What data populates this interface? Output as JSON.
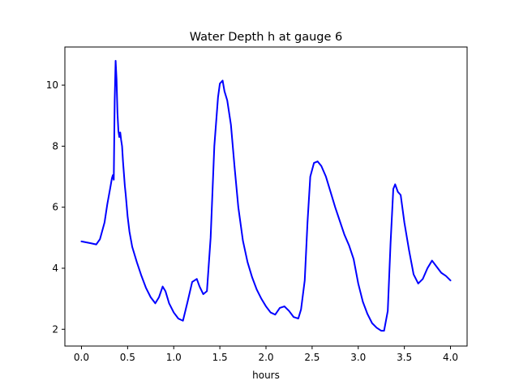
{
  "chart_data": {
    "type": "line",
    "title": "Water Depth h at gauge 6",
    "xlabel": "hours",
    "ylabel": "",
    "xlim": [
      -0.18,
      4.18
    ],
    "ylim": [
      1.45,
      11.25
    ],
    "xticks": [
      0.0,
      0.5,
      1.0,
      1.5,
      2.0,
      2.5,
      3.0,
      3.5,
      4.0
    ],
    "xtick_labels": [
      "0.0",
      "0.5",
      "1.0",
      "1.5",
      "2.0",
      "2.5",
      "3.0",
      "3.5",
      "4.0"
    ],
    "yticks": [
      2,
      4,
      6,
      8,
      10
    ],
    "ytick_labels": [
      "2",
      "4",
      "6",
      "8",
      "10"
    ],
    "grid": false,
    "colors": {
      "line": "#0000ff"
    },
    "series": [
      {
        "x": [
          0.0,
          0.1,
          0.16,
          0.2,
          0.25,
          0.28,
          0.31,
          0.33,
          0.34,
          0.35,
          0.36,
          0.37,
          0.38,
          0.39,
          0.4,
          0.41,
          0.42,
          0.43,
          0.44,
          0.45,
          0.46,
          0.47,
          0.48,
          0.5,
          0.52,
          0.55,
          0.6,
          0.65,
          0.7,
          0.75,
          0.8,
          0.84,
          0.88,
          0.91,
          0.95,
          1.0,
          1.05,
          1.1,
          1.15,
          1.2,
          1.25,
          1.28,
          1.32,
          1.36,
          1.4,
          1.44,
          1.48,
          1.5,
          1.53,
          1.55,
          1.58,
          1.62,
          1.66,
          1.7,
          1.75,
          1.8,
          1.85,
          1.9,
          1.95,
          2.0,
          2.05,
          2.1,
          2.15,
          2.2,
          2.25,
          2.3,
          2.35,
          2.38,
          2.42,
          2.45,
          2.48,
          2.52,
          2.56,
          2.6,
          2.65,
          2.7,
          2.75,
          2.8,
          2.85,
          2.9,
          2.95,
          3.0,
          3.05,
          3.1,
          3.15,
          3.2,
          3.25,
          3.28,
          3.32,
          3.35,
          3.38,
          3.4,
          3.43,
          3.46,
          3.5,
          3.55,
          3.6,
          3.65,
          3.7,
          3.75,
          3.8,
          3.85,
          3.9,
          3.95,
          4.0
        ],
        "y": [
          4.88,
          4.82,
          4.78,
          4.95,
          5.5,
          6.1,
          6.6,
          6.95,
          7.05,
          6.9,
          9.5,
          10.8,
          10.2,
          9.1,
          8.5,
          8.3,
          8.45,
          8.2,
          8.0,
          7.5,
          7.1,
          6.7,
          6.4,
          5.7,
          5.2,
          4.7,
          4.2,
          3.75,
          3.35,
          3.05,
          2.85,
          3.05,
          3.4,
          3.25,
          2.85,
          2.55,
          2.35,
          2.28,
          2.9,
          3.55,
          3.65,
          3.4,
          3.15,
          3.25,
          5.0,
          8.0,
          9.6,
          10.05,
          10.15,
          9.8,
          9.5,
          8.7,
          7.3,
          6.0,
          4.9,
          4.2,
          3.7,
          3.3,
          3.0,
          2.75,
          2.55,
          2.48,
          2.7,
          2.75,
          2.6,
          2.4,
          2.35,
          2.65,
          3.6,
          5.5,
          7.0,
          7.45,
          7.5,
          7.35,
          7.0,
          6.5,
          6.0,
          5.55,
          5.1,
          4.75,
          4.3,
          3.5,
          2.9,
          2.5,
          2.2,
          2.05,
          1.95,
          1.95,
          2.6,
          4.8,
          6.6,
          6.75,
          6.5,
          6.4,
          5.5,
          4.6,
          3.8,
          3.5,
          3.65,
          4.0,
          4.25,
          4.05,
          3.85,
          3.75,
          3.6
        ]
      }
    ]
  }
}
